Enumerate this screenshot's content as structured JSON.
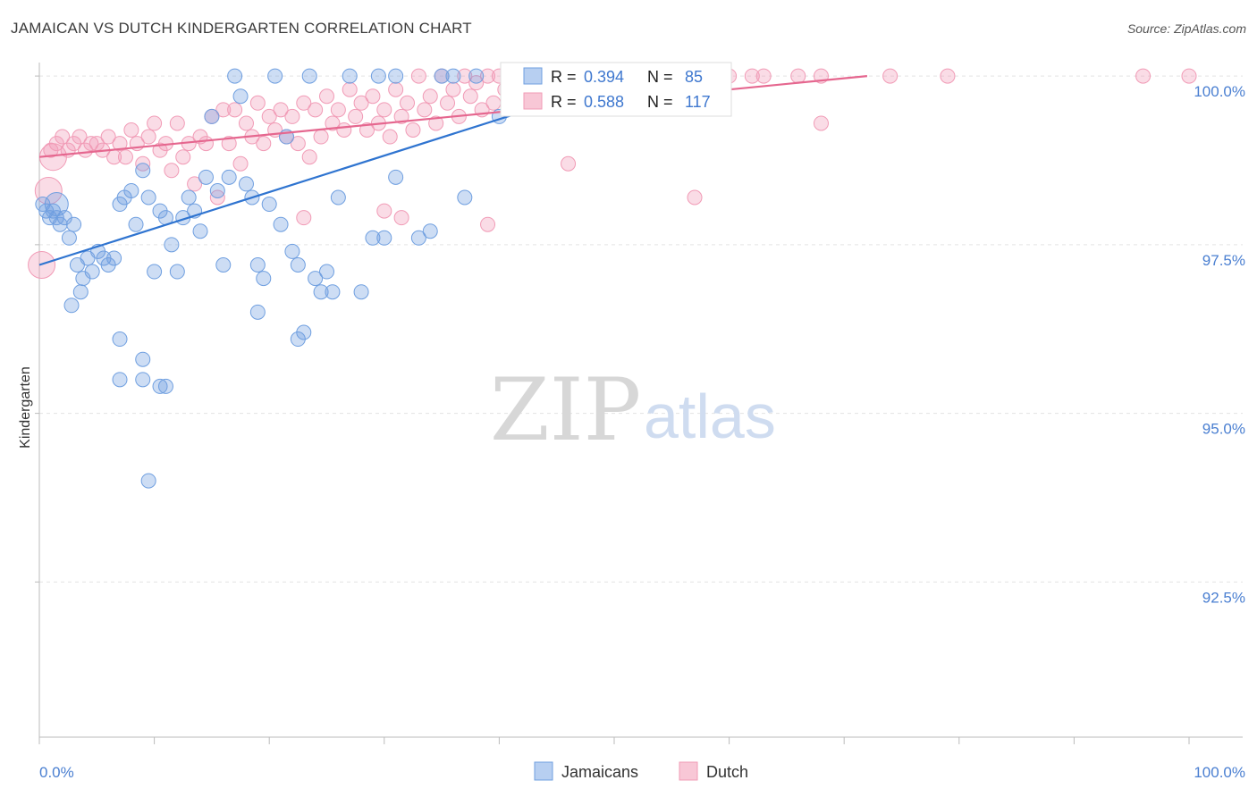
{
  "title": "JAMAICAN VS DUTCH KINDERGARTEN CORRELATION CHART",
  "source": "Source: ZipAtlas.com",
  "watermark": {
    "zip": "ZIP",
    "atlas": "atlas"
  },
  "colors": {
    "jamaicans": "#6f9fe0",
    "jamaicans_line": "#2f74d0",
    "dutch": "#f19bb6",
    "dutch_line": "#e5678f",
    "axis_value": "#4a7fd1",
    "grid": "#e3e3e3"
  },
  "legend_box": {
    "rows": [
      {
        "r_label": "R = ",
        "r_value": "0.394",
        "n_label": "N = ",
        "n_value": "85"
      },
      {
        "r_label": "R = ",
        "r_value": "0.588",
        "n_label": "N = ",
        "n_value": "117"
      }
    ]
  },
  "chart_data": {
    "type": "scatter",
    "title": "JAMAICAN VS DUTCH KINDERGARTEN CORRELATION CHART",
    "xlabel": "",
    "ylabel": "Kindergarten",
    "xlim": [
      0,
      100
    ],
    "ylim": [
      90.2,
      100.2
    ],
    "x_tick_labels": [
      "0.0%",
      "100.0%"
    ],
    "y_ticks": [
      92.5,
      95.0,
      97.5,
      100.0
    ],
    "y_tick_labels": [
      "92.5%",
      "95.0%",
      "97.5%",
      "100.0%"
    ],
    "legend": [
      "Jamaicans",
      "Dutch"
    ],
    "series": [
      {
        "name": "Jamaicans",
        "r": 0.394,
        "n": 85,
        "trend": {
          "x": [
            0,
            50
          ],
          "y": [
            97.2,
            99.9
          ]
        },
        "points": [
          [
            0.3,
            98.1
          ],
          [
            0.6,
            98.0
          ],
          [
            0.9,
            97.9
          ],
          [
            1.2,
            98.0
          ],
          [
            1.5,
            97.9
          ],
          [
            1.8,
            97.8
          ],
          [
            2.2,
            97.9
          ],
          [
            2.6,
            97.6
          ],
          [
            3.0,
            97.8
          ],
          [
            3.3,
            97.2
          ],
          [
            3.8,
            97.0
          ],
          [
            4.2,
            97.3
          ],
          [
            4.6,
            97.1
          ],
          [
            5.1,
            97.4
          ],
          [
            5.6,
            97.3
          ],
          [
            6.0,
            97.2
          ],
          [
            6.5,
            97.3
          ],
          [
            7.0,
            98.1
          ],
          [
            7.4,
            98.2
          ],
          [
            8.0,
            98.3
          ],
          [
            8.4,
            97.8
          ],
          [
            9.0,
            98.6
          ],
          [
            9.5,
            98.2
          ],
          [
            10.0,
            97.1
          ],
          [
            10.5,
            98.0
          ],
          [
            11.0,
            97.9
          ],
          [
            11.5,
            97.5
          ],
          [
            12.0,
            97.1
          ],
          [
            12.5,
            97.9
          ],
          [
            13.0,
            98.2
          ],
          [
            13.5,
            98.0
          ],
          [
            14.0,
            97.7
          ],
          [
            14.5,
            98.5
          ],
          [
            15.0,
            99.4
          ],
          [
            15.5,
            98.3
          ],
          [
            16.0,
            97.2
          ],
          [
            16.5,
            98.5
          ],
          [
            17.0,
            100.0
          ],
          [
            17.5,
            99.7
          ],
          [
            18.0,
            98.4
          ],
          [
            18.5,
            98.2
          ],
          [
            19.0,
            97.2
          ],
          [
            19.5,
            97.0
          ],
          [
            20.0,
            98.1
          ],
          [
            20.5,
            100.0
          ],
          [
            21.0,
            97.8
          ],
          [
            21.5,
            99.1
          ],
          [
            22.0,
            97.4
          ],
          [
            22.5,
            97.2
          ],
          [
            23.5,
            100.0
          ],
          [
            24.0,
            97.0
          ],
          [
            24.5,
            96.8
          ],
          [
            25.0,
            97.1
          ],
          [
            25.5,
            96.8
          ],
          [
            26.0,
            98.2
          ],
          [
            28.0,
            96.8
          ],
          [
            29.0,
            97.6
          ],
          [
            30.0,
            97.6
          ],
          [
            31.0,
            98.5
          ],
          [
            33.0,
            97.6
          ],
          [
            34.0,
            97.7
          ],
          [
            35.0,
            100.0
          ],
          [
            36.0,
            100.0
          ],
          [
            37.0,
            98.2
          ],
          [
            38.0,
            100.0
          ],
          [
            40.0,
            99.4
          ],
          [
            43.0,
            99.6
          ],
          [
            45.0,
            99.8
          ],
          [
            46.0,
            100.0
          ],
          [
            48.0,
            99.9
          ],
          [
            3.6,
            96.8
          ],
          [
            2.8,
            96.6
          ],
          [
            7.0,
            96.1
          ],
          [
            9.0,
            95.8
          ],
          [
            7.0,
            95.5
          ],
          [
            9.0,
            95.5
          ],
          [
            10.5,
            95.4
          ],
          [
            11.0,
            95.4
          ],
          [
            22.5,
            96.1
          ],
          [
            23.0,
            96.2
          ],
          [
            9.5,
            94.0
          ],
          [
            19.0,
            96.5
          ],
          [
            27.0,
            100.0
          ],
          [
            29.5,
            100.0
          ],
          [
            31.0,
            100.0
          ]
        ],
        "big_points": [
          [
            1.5,
            98.1
          ]
        ]
      },
      {
        "name": "Dutch",
        "r": 0.588,
        "n": 117,
        "trend": {
          "x": [
            0,
            72
          ],
          "y": [
            98.8,
            100.0
          ]
        },
        "points": [
          [
            1.0,
            98.9
          ],
          [
            1.5,
            99.0
          ],
          [
            2.0,
            99.1
          ],
          [
            2.5,
            98.9
          ],
          [
            3.0,
            99.0
          ],
          [
            3.5,
            99.1
          ],
          [
            4.0,
            98.9
          ],
          [
            4.5,
            99.0
          ],
          [
            5.0,
            99.0
          ],
          [
            5.5,
            98.9
          ],
          [
            6.0,
            99.1
          ],
          [
            6.5,
            98.8
          ],
          [
            7.0,
            99.0
          ],
          [
            7.5,
            98.8
          ],
          [
            8.0,
            99.2
          ],
          [
            8.5,
            99.0
          ],
          [
            9.0,
            98.7
          ],
          [
            9.5,
            99.1
          ],
          [
            10.0,
            99.3
          ],
          [
            10.5,
            98.9
          ],
          [
            11.0,
            99.0
          ],
          [
            11.5,
            98.6
          ],
          [
            12.0,
            99.3
          ],
          [
            12.5,
            98.8
          ],
          [
            13.0,
            99.0
          ],
          [
            13.5,
            98.4
          ],
          [
            14.0,
            99.1
          ],
          [
            14.5,
            99.0
          ],
          [
            15.0,
            99.4
          ],
          [
            15.5,
            98.2
          ],
          [
            16.0,
            99.5
          ],
          [
            16.5,
            99.0
          ],
          [
            17.0,
            99.5
          ],
          [
            17.5,
            98.7
          ],
          [
            18.0,
            99.3
          ],
          [
            18.5,
            99.1
          ],
          [
            19.0,
            99.6
          ],
          [
            19.5,
            99.0
          ],
          [
            20.0,
            99.4
          ],
          [
            20.5,
            99.2
          ],
          [
            21.0,
            99.5
          ],
          [
            21.5,
            99.1
          ],
          [
            22.0,
            99.4
          ],
          [
            22.5,
            99.0
          ],
          [
            23.0,
            99.6
          ],
          [
            23.5,
            98.8
          ],
          [
            24.0,
            99.5
          ],
          [
            24.5,
            99.1
          ],
          [
            25.0,
            99.7
          ],
          [
            25.5,
            99.3
          ],
          [
            26.0,
            99.5
          ],
          [
            26.5,
            99.2
          ],
          [
            27.0,
            99.8
          ],
          [
            27.5,
            99.4
          ],
          [
            28.0,
            99.6
          ],
          [
            28.5,
            99.2
          ],
          [
            29.0,
            99.7
          ],
          [
            29.5,
            99.3
          ],
          [
            30.0,
            99.5
          ],
          [
            30.5,
            99.1
          ],
          [
            31.0,
            99.8
          ],
          [
            31.5,
            99.4
          ],
          [
            32.0,
            99.6
          ],
          [
            32.5,
            99.2
          ],
          [
            33.0,
            100.0
          ],
          [
            33.5,
            99.5
          ],
          [
            34.0,
            99.7
          ],
          [
            34.5,
            99.3
          ],
          [
            35.0,
            100.0
          ],
          [
            35.5,
            99.6
          ],
          [
            36.0,
            99.8
          ],
          [
            36.5,
            99.4
          ],
          [
            37.0,
            100.0
          ],
          [
            37.5,
            99.7
          ],
          [
            38.0,
            99.9
          ],
          [
            38.5,
            99.5
          ],
          [
            39.0,
            100.0
          ],
          [
            39.5,
            99.6
          ],
          [
            40.0,
            100.0
          ],
          [
            40.5,
            99.8
          ],
          [
            41.0,
            100.0
          ],
          [
            41.5,
            99.7
          ],
          [
            42.0,
            100.0
          ],
          [
            42.5,
            99.9
          ],
          [
            43.0,
            100.0
          ],
          [
            43.5,
            99.8
          ],
          [
            44.0,
            100.0
          ],
          [
            44.5,
            99.9
          ],
          [
            45.0,
            100.0
          ],
          [
            46.0,
            99.9
          ],
          [
            47.0,
            100.0
          ],
          [
            48.0,
            99.9
          ],
          [
            49.0,
            100.0
          ],
          [
            50.0,
            99.8
          ],
          [
            51.0,
            100.0
          ],
          [
            52.0,
            99.9
          ],
          [
            53.0,
            100.0
          ],
          [
            54.0,
            99.9
          ],
          [
            55.0,
            100.0
          ],
          [
            56.0,
            99.9
          ],
          [
            58.0,
            100.0
          ],
          [
            60.0,
            100.0
          ],
          [
            62.0,
            100.0
          ],
          [
            63.0,
            100.0
          ],
          [
            66.0,
            100.0
          ],
          [
            68.0,
            100.0
          ],
          [
            74.0,
            100.0
          ],
          [
            79.0,
            100.0
          ],
          [
            96.0,
            100.0
          ],
          [
            100.0,
            100.0
          ],
          [
            23.0,
            97.9
          ],
          [
            30.0,
            98.0
          ],
          [
            31.5,
            97.9
          ],
          [
            39.0,
            97.8
          ],
          [
            46.0,
            98.7
          ],
          [
            57.0,
            98.2
          ],
          [
            68.0,
            99.3
          ]
        ],
        "big_points": [
          [
            0.8,
            98.3
          ],
          [
            1.2,
            98.8
          ],
          [
            0.2,
            97.2
          ]
        ]
      }
    ]
  }
}
